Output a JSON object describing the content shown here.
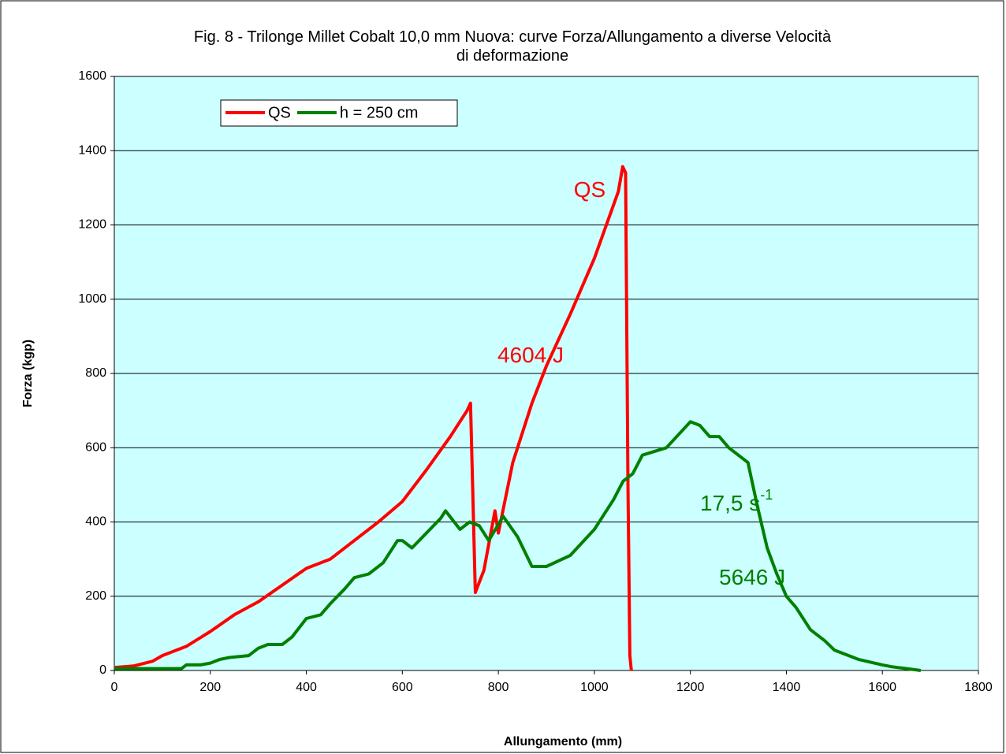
{
  "chart_data": {
    "type": "line",
    "title": "Fig. 8 - Trilonge Millet Cobalt 10,0 mm Nuova: curve Forza/Allungamento a diverse Velocità di deformazione",
    "x_label": "Allungamento (mm)",
    "y_label": "Forza (kgp)",
    "xlim": [
      0,
      1800
    ],
    "xticks": [
      0,
      200,
      400,
      600,
      800,
      1000,
      1200,
      1400,
      1600,
      1800
    ],
    "ylim": [
      0,
      1600
    ],
    "yticks": [
      0,
      200,
      400,
      600,
      800,
      1000,
      1200,
      1400,
      1600
    ],
    "grid": true,
    "legend": "top-left",
    "series": [
      {
        "name": "QS",
        "color": "#ff0000",
        "x": [
          0,
          40,
          80,
          100,
          150,
          200,
          250,
          300,
          350,
          400,
          450,
          500,
          550,
          600,
          650,
          700,
          735,
          742,
          752,
          770,
          793,
          800,
          830,
          870,
          900,
          950,
          1000,
          1050,
          1059,
          1065,
          1070,
          1074,
          1077
        ],
        "values": [
          8,
          12,
          25,
          40,
          65,
          105,
          150,
          185,
          230,
          275,
          300,
          350,
          400,
          455,
          540,
          630,
          700,
          720,
          210,
          270,
          430,
          370,
          560,
          720,
          820,
          960,
          1110,
          1290,
          1357,
          1340,
          500,
          40,
          0
        ]
      },
      {
        "name": "h = 250 cm",
        "color": "#008000",
        "x": [
          0,
          140,
          150,
          180,
          200,
          220,
          240,
          280,
          300,
          320,
          350,
          370,
          400,
          430,
          450,
          480,
          500,
          530,
          560,
          590,
          600,
          620,
          650,
          680,
          690,
          720,
          740,
          760,
          780,
          810,
          840,
          870,
          900,
          950,
          1000,
          1040,
          1060,
          1080,
          1100,
          1150,
          1200,
          1220,
          1240,
          1260,
          1280,
          1320,
          1340,
          1360,
          1380,
          1400,
          1420,
          1450,
          1480,
          1500,
          1550,
          1600,
          1620,
          1650,
          1680
        ],
        "values": [
          5,
          5,
          15,
          15,
          20,
          30,
          35,
          40,
          60,
          70,
          70,
          90,
          140,
          150,
          180,
          220,
          250,
          260,
          290,
          350,
          350,
          330,
          370,
          410,
          430,
          380,
          400,
          390,
          350,
          415,
          360,
          280,
          280,
          310,
          380,
          460,
          510,
          530,
          580,
          600,
          670,
          660,
          630,
          630,
          600,
          560,
          440,
          330,
          260,
          200,
          170,
          110,
          80,
          55,
          30,
          15,
          10,
          5,
          0
        ]
      }
    ],
    "annotations": [
      {
        "text": "QS",
        "color": "#ff0000"
      },
      {
        "text": "4604 J",
        "color": "#ff0000"
      },
      {
        "text": "17,5 s",
        "sup": "-1",
        "color": "#008000"
      },
      {
        "text": "5646 J",
        "color": "#008000"
      }
    ]
  }
}
